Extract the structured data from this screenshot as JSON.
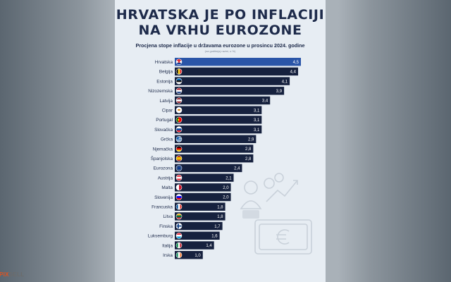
{
  "chart_data": {
    "type": "bar",
    "orientation": "horizontal",
    "title": "HRVATSKA JE PO INFLACIJI NA VRHU EUROZONE",
    "title_lines": [
      "HRVATSKA JE PO INFLACIJI",
      "NA VRHU EUROZONE"
    ],
    "subtitle": "Procjena stope inflacije u državama eurozone u prosincu 2024. godine",
    "unit_note": "(na godišnjoj razini, u %)",
    "categories": [
      "Hrvatska",
      "Belgija",
      "Estonija",
      "Nizozemska",
      "Latvija",
      "Cipar",
      "Portugal",
      "Slovačka",
      "Grčka",
      "Njemačka",
      "Španjolska",
      "Eurozona",
      "Austrija",
      "Malta",
      "Slovenija",
      "Francuska",
      "Litva",
      "Finska",
      "Luksemburg",
      "Italija",
      "Irska"
    ],
    "values": [
      4.5,
      4.4,
      4.1,
      3.9,
      3.4,
      3.1,
      3.1,
      3.1,
      2.9,
      2.8,
      2.8,
      2.4,
      2.1,
      2.0,
      2.0,
      1.8,
      1.8,
      1.7,
      1.6,
      1.4,
      1.0
    ],
    "value_labels": [
      "4,5",
      "4,4",
      "4,1",
      "3,9",
      "3,4",
      "3,1",
      "3,1",
      "3,1",
      "2,9",
      "2,8",
      "2,8",
      "2,4",
      "2,1",
      "2,0",
      "2,0",
      "1,8",
      "1,8",
      "1,7",
      "1,6",
      "1,4",
      "1,0"
    ],
    "flags": [
      "flag-hr",
      "flag-be",
      "flag-ee",
      "flag-nl",
      "flag-lv",
      "flag-cy",
      "flag-pt",
      "flag-sk",
      "flag-gr",
      "flag-de",
      "flag-es",
      "flag-eu",
      "flag-at",
      "flag-mt",
      "flag-si",
      "flag-fr",
      "flag-lt",
      "flag-fi",
      "flag-lu",
      "flag-it",
      "flag-ie"
    ],
    "xlim": [
      0,
      4.5
    ],
    "grid": false,
    "legend": "none",
    "highlight_index": 0
  },
  "colors": {
    "bar": "#16213e",
    "highlight_bar": "#2a55a8",
    "card_background": "#e7edf3",
    "title": "#1d2a4a"
  },
  "decoration_icon": "money-euro-growth-icon",
  "watermark": {
    "part1": "PIX",
    "part2": "SELL"
  }
}
